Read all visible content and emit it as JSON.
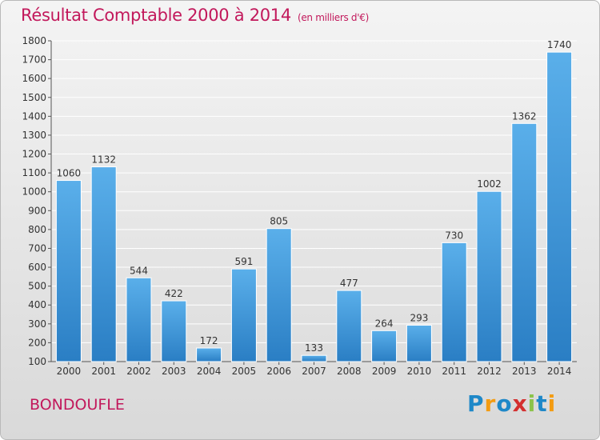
{
  "header": {
    "title": "Résultat Comptable 2000 à 2014",
    "subtitle": "(en milliers d'€)"
  },
  "footer": {
    "city": "BONDOUFLE",
    "logo_text": "Proxiti",
    "logo_letters": [
      {
        "ch": "P",
        "color": "#1e88c8"
      },
      {
        "ch": "r",
        "color": "#f39c12"
      },
      {
        "ch": "o",
        "color": "#1e88c8"
      },
      {
        "ch": "x",
        "color": "#d32f2f"
      },
      {
        "ch": "i",
        "color": "#8bc34a"
      },
      {
        "ch": "t",
        "color": "#1e88c8"
      },
      {
        "ch": "i",
        "color": "#f39c12"
      }
    ]
  },
  "colors": {
    "accent": "#c2185b",
    "bar_top": "#5aafea",
    "bar_bottom": "#2a7ec4",
    "grid": "#ffffff",
    "text": "#333333"
  },
  "chart_data": {
    "type": "bar",
    "categories": [
      "2000",
      "2001",
      "2002",
      "2003",
      "2004",
      "2005",
      "2006",
      "2007",
      "2008",
      "2009",
      "2010",
      "2011",
      "2012",
      "2013",
      "2014"
    ],
    "values": [
      1060,
      1132,
      544,
      422,
      172,
      591,
      805,
      133,
      477,
      264,
      293,
      730,
      1002,
      1362,
      1740
    ],
    "ylim": [
      100,
      1800
    ],
    "yticks": [
      100,
      200,
      300,
      400,
      500,
      600,
      700,
      800,
      900,
      1000,
      1100,
      1200,
      1300,
      1400,
      1500,
      1600,
      1700,
      1800
    ],
    "grid": true,
    "data_labels": true
  }
}
